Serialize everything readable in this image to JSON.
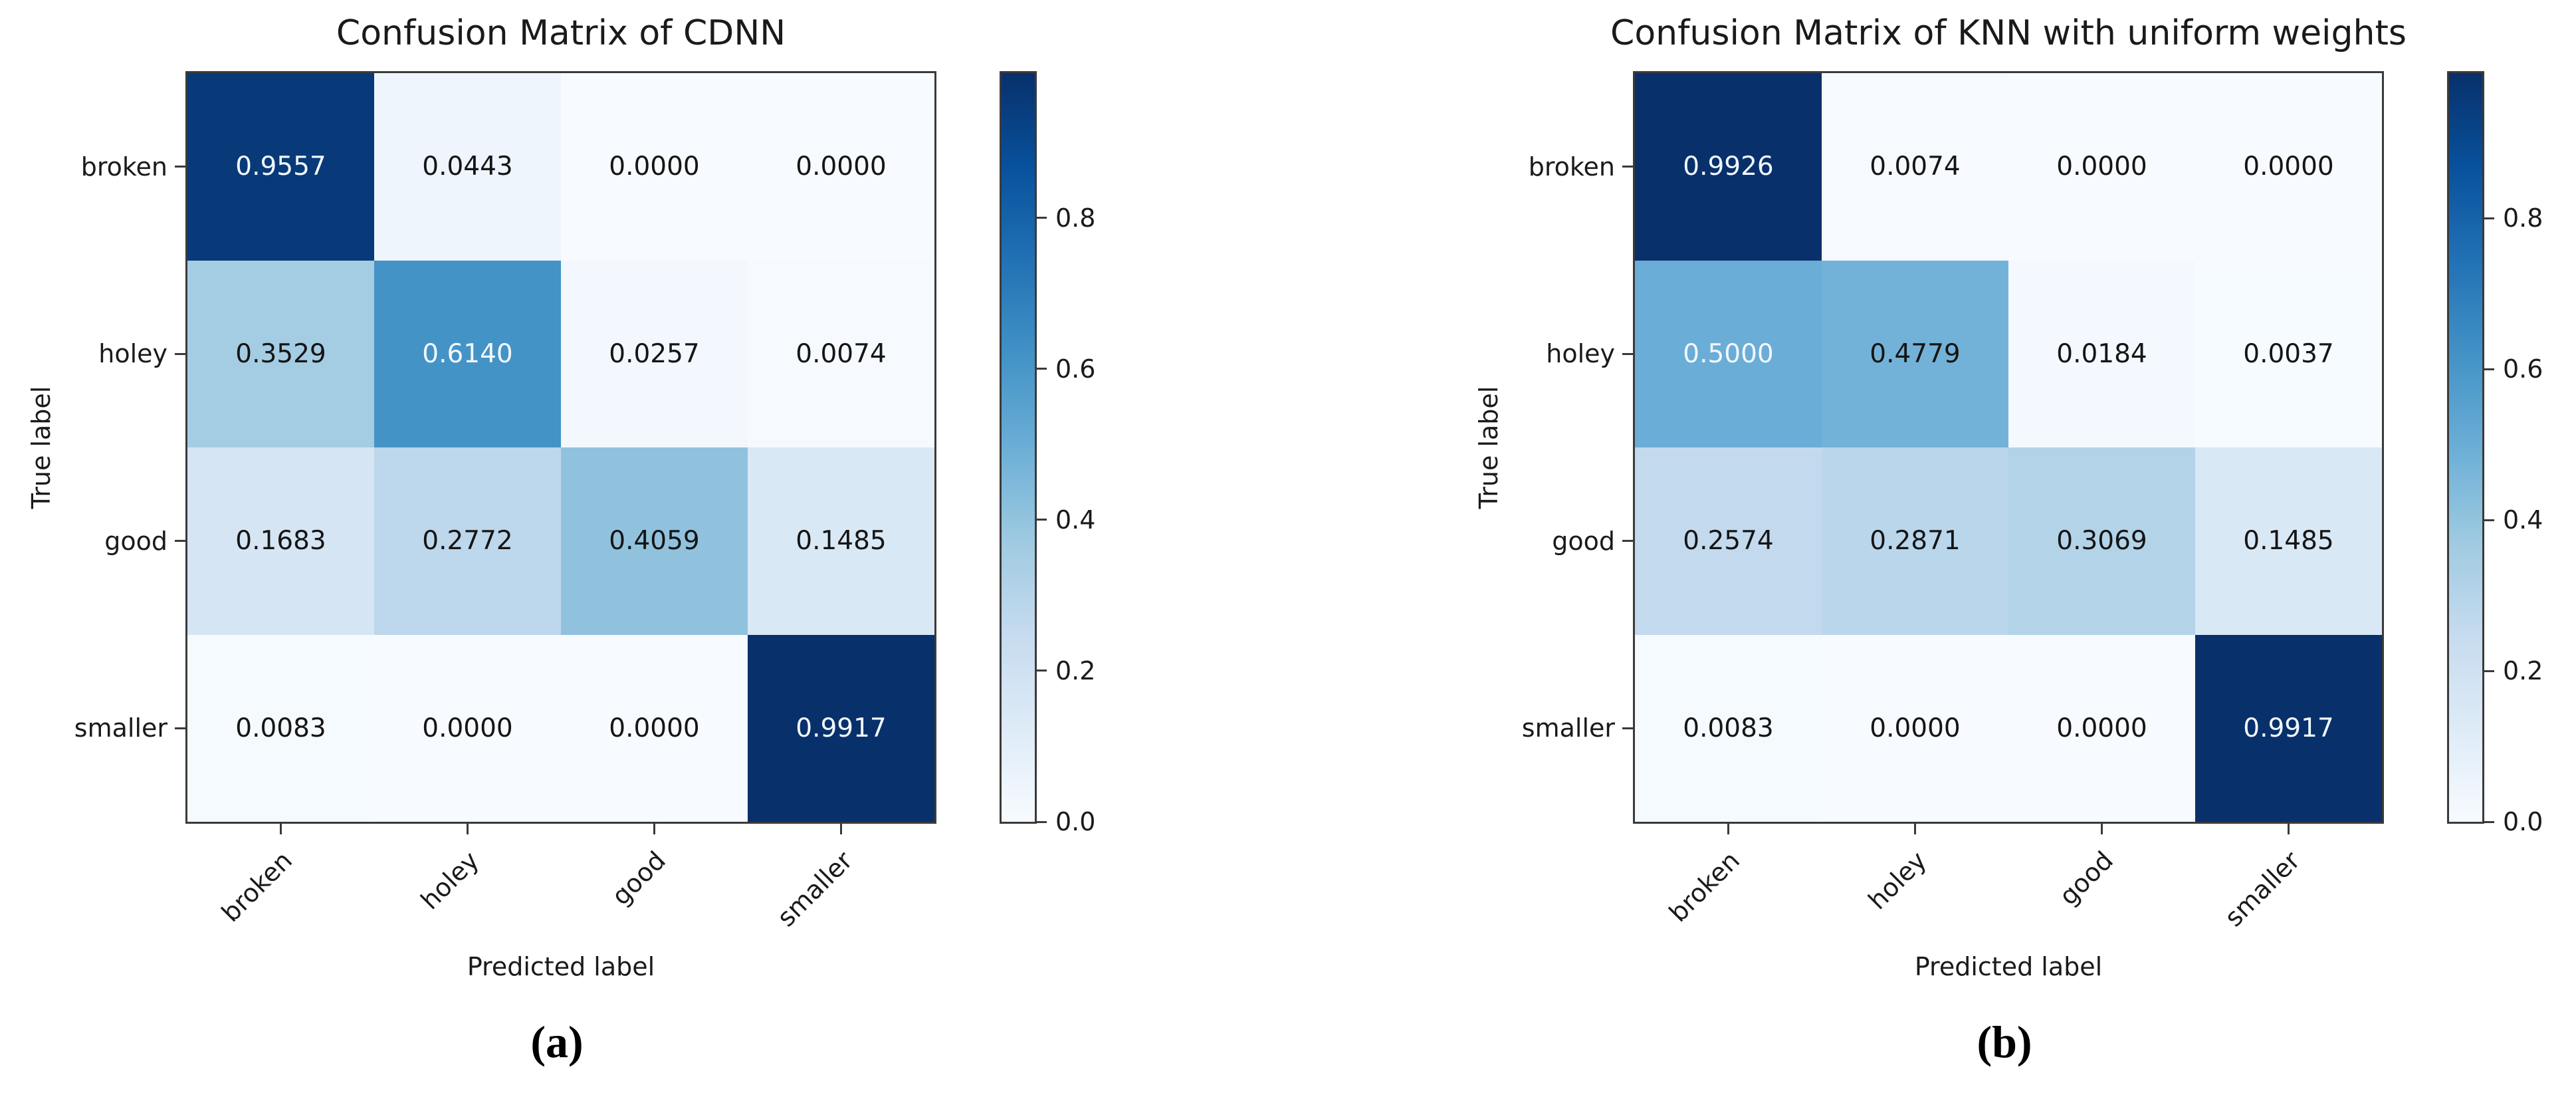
{
  "figure": {
    "background": "#ffffff",
    "colormap_name": "Blues",
    "colormap_stops": [
      "#f7fbff",
      "#deebf7",
      "#c6dbef",
      "#9ecae1",
      "#6baed6",
      "#4292c6",
      "#2171b5",
      "#08519c",
      "#08306b"
    ],
    "cell_text_dark": "#151515",
    "cell_text_light": "#f2f7fc",
    "spine_color": "#3a3a3a",
    "value_decimals": 4
  },
  "chart_data": [
    {
      "type": "heatmap",
      "title": "Confusion Matrix of CDNN",
      "caption": "(a)",
      "xlabel": "Predicted label",
      "ylabel": "True label",
      "x_tick_labels": [
        "broken",
        "holey",
        "good",
        "smaller"
      ],
      "y_tick_labels": [
        "broken",
        "holey",
        "good",
        "smaller"
      ],
      "matrix": [
        [
          0.9557,
          0.0443,
          0.0,
          0.0
        ],
        [
          0.3529,
          0.614,
          0.0257,
          0.0074
        ],
        [
          0.1683,
          0.2772,
          0.4059,
          0.1485
        ],
        [
          0.0083,
          0.0,
          0.0,
          0.9917
        ]
      ],
      "colorbar": {
        "tick_labels": [
          "0.8",
          "0.6",
          "0.4",
          "0.2",
          "0.0"
        ],
        "tick_values": [
          0.8,
          0.6,
          0.4,
          0.2,
          0.0
        ],
        "vmin": 0.0,
        "vmax": 0.9917
      },
      "grid": false,
      "x_tick_rotation_deg": 45
    },
    {
      "type": "heatmap",
      "title": "Confusion Matrix of KNN with uniform weights",
      "caption": "(b)",
      "xlabel": "Predicted label",
      "ylabel": "True label",
      "x_tick_labels": [
        "broken",
        "holey",
        "good",
        "smaller"
      ],
      "y_tick_labels": [
        "broken",
        "holey",
        "good",
        "smaller"
      ],
      "matrix": [
        [
          0.9926,
          0.0074,
          0.0,
          0.0
        ],
        [
          0.5,
          0.4779,
          0.0184,
          0.0037
        ],
        [
          0.2574,
          0.2871,
          0.3069,
          0.1485
        ],
        [
          0.0083,
          0.0,
          0.0,
          0.9917
        ]
      ],
      "colorbar": {
        "tick_labels": [
          "0.8",
          "0.6",
          "0.4",
          "0.2",
          "0.0"
        ],
        "tick_values": [
          0.8,
          0.6,
          0.4,
          0.2,
          0.0
        ],
        "vmin": 0.0,
        "vmax": 0.9926
      },
      "grid": false,
      "x_tick_rotation_deg": 45
    }
  ]
}
